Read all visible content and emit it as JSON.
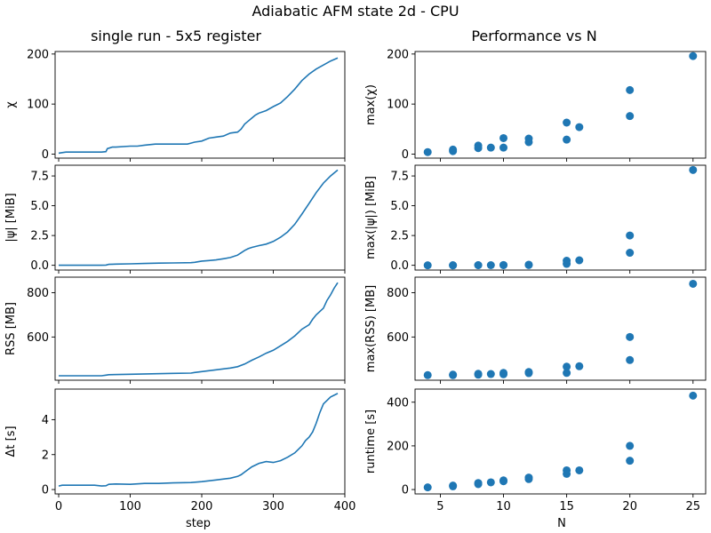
{
  "figure": {
    "suptitle": "Adiabatic AFM state 2d - CPU",
    "left_column_title": "single run - 5x5 register",
    "right_column_title": "Performance vs N",
    "left_xlabel": "step",
    "right_xlabel": "N",
    "series_color": "#1f77b4"
  },
  "chart_data": [
    {
      "type": "line",
      "ylabel": "χ",
      "xlim": [
        -5,
        400
      ],
      "ylim": [
        -8,
        205
      ],
      "xticks": [
        0,
        100,
        200,
        300,
        400
      ],
      "yticks": [
        0,
        100,
        200
      ],
      "x": [
        0,
        5,
        10,
        20,
        30,
        40,
        50,
        60,
        66,
        68,
        75,
        80,
        100,
        110,
        120,
        135,
        150,
        160,
        180,
        185,
        190,
        200,
        210,
        220,
        230,
        240,
        250,
        255,
        260,
        265,
        270,
        275,
        280,
        290,
        300,
        310,
        320,
        330,
        340,
        350,
        360,
        370,
        380,
        390
      ],
      "y": [
        2,
        3,
        4,
        4,
        4,
        4,
        4,
        4,
        5,
        11,
        14,
        14,
        16,
        16,
        18,
        20,
        20,
        20,
        20,
        22,
        24,
        26,
        32,
        34,
        36,
        42,
        44,
        50,
        60,
        66,
        72,
        78,
        82,
        87,
        95,
        102,
        115,
        130,
        147,
        160,
        170,
        178,
        186,
        192
      ]
    },
    {
      "type": "scatter",
      "ylabel": "max(χ)",
      "xlim": [
        3,
        26
      ],
      "ylim": [
        -8,
        205
      ],
      "xticks": [
        5,
        10,
        15,
        20,
        25
      ],
      "yticks": [
        0,
        100,
        200
      ],
      "x": [
        4,
        6,
        6,
        8,
        8,
        9,
        10,
        10,
        12,
        12,
        15,
        15,
        16,
        20,
        20,
        25
      ],
      "y": [
        4,
        6,
        9,
        12,
        17,
        13,
        32,
        13,
        31,
        24,
        63,
        29,
        54,
        128,
        76,
        196
      ]
    },
    {
      "type": "line",
      "ylabel": "|ψ| [MiB]",
      "xlim": [
        -5,
        400
      ],
      "ylim": [
        -0.4,
        8.4
      ],
      "xticks": [
        0,
        100,
        200,
        300,
        400
      ],
      "yticks": [
        0.0,
        2.5,
        5.0,
        7.5
      ],
      "x": [
        0,
        20,
        40,
        60,
        66,
        70,
        80,
        100,
        120,
        140,
        160,
        185,
        190,
        200,
        210,
        220,
        230,
        240,
        250,
        255,
        260,
        265,
        270,
        280,
        290,
        300,
        310,
        320,
        330,
        340,
        350,
        360,
        370,
        380,
        390
      ],
      "y": [
        0.0,
        0.0,
        0.0,
        0.0,
        0.02,
        0.08,
        0.1,
        0.12,
        0.15,
        0.18,
        0.2,
        0.22,
        0.25,
        0.35,
        0.4,
        0.45,
        0.55,
        0.65,
        0.85,
        1.05,
        1.25,
        1.4,
        1.5,
        1.65,
        1.78,
        2.0,
        2.35,
        2.8,
        3.45,
        4.3,
        5.2,
        6.1,
        6.9,
        7.5,
        8.0
      ]
    },
    {
      "type": "scatter",
      "ylabel": "max(|ψ|) [MiB]",
      "xlim": [
        3,
        26
      ],
      "ylim": [
        -0.4,
        8.4
      ],
      "xticks": [
        5,
        10,
        15,
        20,
        25
      ],
      "yticks": [
        0.0,
        2.5,
        5.0,
        7.5
      ],
      "x": [
        4,
        6,
        6,
        8,
        8,
        9,
        10,
        10,
        12,
        12,
        15,
        15,
        16,
        20,
        20,
        25
      ],
      "y": [
        0.0,
        0.0,
        0.0,
        0.01,
        0.01,
        0.01,
        0.02,
        0.01,
        0.05,
        0.02,
        0.38,
        0.12,
        0.42,
        2.5,
        1.05,
        8.0
      ]
    },
    {
      "type": "line",
      "ylabel": "RSS [MB]",
      "xlim": [
        -5,
        400
      ],
      "ylim": [
        405,
        870
      ],
      "xticks": [
        0,
        100,
        200,
        300,
        400
      ],
      "yticks": [
        600,
        800
      ],
      "x": [
        0,
        20,
        40,
        60,
        66,
        70,
        100,
        130,
        160,
        185,
        190,
        200,
        220,
        240,
        250,
        260,
        270,
        280,
        290,
        300,
        310,
        320,
        330,
        340,
        350,
        355,
        360,
        370,
        375,
        380,
        385,
        390
      ],
      "y": [
        425,
        425,
        425,
        425,
        428,
        430,
        432,
        434,
        436,
        437,
        440,
        444,
        452,
        460,
        466,
        478,
        495,
        510,
        527,
        540,
        560,
        580,
        605,
        635,
        655,
        680,
        700,
        730,
        765,
        790,
        820,
        845
      ]
    },
    {
      "type": "scatter",
      "ylabel": "max(RSS) [MB]",
      "xlim": [
        3,
        26
      ],
      "ylim": [
        405,
        870
      ],
      "xticks": [
        5,
        10,
        15,
        20,
        25
      ],
      "yticks": [
        600,
        800
      ],
      "x": [
        4,
        6,
        6,
        8,
        8,
        9,
        10,
        10,
        12,
        12,
        15,
        15,
        16,
        20,
        20,
        25
      ],
      "y": [
        428,
        428,
        430,
        430,
        434,
        433,
        438,
        432,
        442,
        437,
        466,
        438,
        468,
        600,
        496,
        840
      ]
    },
    {
      "type": "line",
      "ylabel": "Δt [s]",
      "xlim": [
        -5,
        400
      ],
      "ylim": [
        -0.25,
        5.75
      ],
      "xticks": [
        0,
        100,
        200,
        300,
        400
      ],
      "yticks": [
        0,
        2,
        4
      ],
      "x": [
        0,
        5,
        10,
        20,
        30,
        40,
        50,
        60,
        66,
        70,
        80,
        100,
        120,
        140,
        160,
        185,
        200,
        220,
        240,
        250,
        255,
        260,
        270,
        280,
        290,
        300,
        310,
        320,
        330,
        340,
        345,
        350,
        355,
        360,
        365,
        370,
        380,
        390
      ],
      "y": [
        0.2,
        0.25,
        0.25,
        0.25,
        0.25,
        0.25,
        0.25,
        0.2,
        0.22,
        0.3,
        0.32,
        0.3,
        0.35,
        0.35,
        0.38,
        0.4,
        0.45,
        0.55,
        0.65,
        0.75,
        0.85,
        1.0,
        1.3,
        1.5,
        1.6,
        1.55,
        1.65,
        1.85,
        2.1,
        2.5,
        2.8,
        3.0,
        3.3,
        3.8,
        4.4,
        4.9,
        5.3,
        5.5
      ]
    },
    {
      "type": "scatter",
      "ylabel": "runtime [s]",
      "xlim": [
        3,
        26
      ],
      "ylim": [
        -20,
        460
      ],
      "xticks": [
        5,
        10,
        15,
        20,
        25
      ],
      "yticks": [
        0,
        200,
        400
      ],
      "x": [
        4,
        6,
        6,
        8,
        8,
        9,
        10,
        10,
        12,
        12,
        15,
        15,
        16,
        20,
        20,
        25
      ],
      "y": [
        10,
        18,
        15,
        30,
        25,
        33,
        42,
        38,
        55,
        48,
        88,
        72,
        88,
        200,
        132,
        430
      ]
    }
  ]
}
